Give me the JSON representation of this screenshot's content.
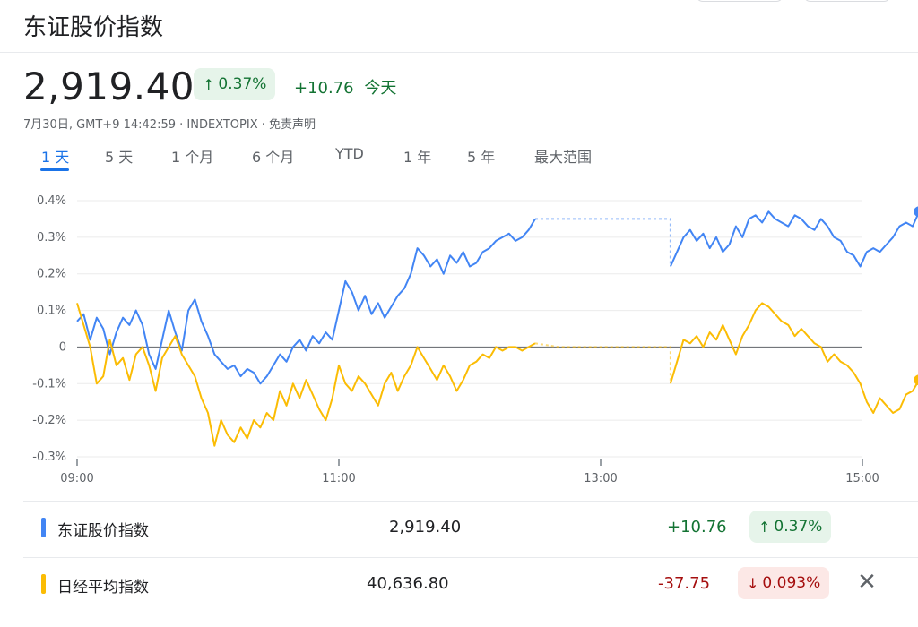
{
  "header": {
    "title": "东证股价指数"
  },
  "quote": {
    "price": "2,919.40",
    "change_pct": "0.37%",
    "change_abs": "+10.76",
    "period_label": "今天",
    "subline": "7月30日, GMT+9 14:42:59 · INDEXTOPIX · 免责声明"
  },
  "tabs": [
    "1 天",
    "5 天",
    "1 个月",
    "6 个月",
    "YTD",
    "1 年",
    "5 年",
    "最大范围"
  ],
  "colors": {
    "topix": "#4285f4",
    "nikkei": "#fbbc04",
    "up": "#137333",
    "down": "#a50e0e"
  },
  "chart_data": {
    "type": "line",
    "x_ticks": [
      "09:00",
      "11:00",
      "13:00",
      "15:00"
    ],
    "y_ticks": [
      "0.4%",
      "0.3%",
      "0.2%",
      "0.1%",
      "0",
      "-0.1%",
      "-0.2%",
      "-0.3%"
    ],
    "ylim": [
      -0.3,
      0.4
    ],
    "xlim_minutes": [
      540,
      900
    ],
    "series": [
      {
        "name": "东证股价指数",
        "color": "#4285f4",
        "morning": [
          [
            540,
            0.07
          ],
          [
            543,
            0.09
          ],
          [
            546,
            0.02
          ],
          [
            549,
            0.08
          ],
          [
            552,
            0.05
          ],
          [
            555,
            -0.02
          ],
          [
            558,
            0.04
          ],
          [
            561,
            0.08
          ],
          [
            564,
            0.06
          ],
          [
            567,
            0.1
          ],
          [
            570,
            0.06
          ],
          [
            573,
            -0.02
          ],
          [
            576,
            -0.06
          ],
          [
            579,
            0.02
          ],
          [
            582,
            0.1
          ],
          [
            585,
            0.04
          ],
          [
            588,
            -0.01
          ],
          [
            591,
            0.1
          ],
          [
            594,
            0.13
          ],
          [
            597,
            0.07
          ],
          [
            600,
            0.03
          ],
          [
            603,
            -0.02
          ],
          [
            606,
            -0.04
          ],
          [
            609,
            -0.06
          ],
          [
            612,
            -0.05
          ],
          [
            615,
            -0.08
          ],
          [
            618,
            -0.06
          ],
          [
            621,
            -0.07
          ],
          [
            624,
            -0.1
          ],
          [
            627,
            -0.08
          ],
          [
            630,
            -0.05
          ],
          [
            633,
            -0.02
          ],
          [
            636,
            -0.04
          ],
          [
            639,
            0.0
          ],
          [
            642,
            0.02
          ],
          [
            645,
            -0.01
          ],
          [
            648,
            0.03
          ],
          [
            651,
            0.01
          ],
          [
            654,
            0.04
          ],
          [
            657,
            0.02
          ],
          [
            660,
            0.1
          ],
          [
            663,
            0.18
          ],
          [
            666,
            0.15
          ],
          [
            669,
            0.1
          ],
          [
            672,
            0.14
          ],
          [
            675,
            0.09
          ],
          [
            678,
            0.12
          ],
          [
            681,
            0.08
          ],
          [
            684,
            0.11
          ],
          [
            687,
            0.14
          ],
          [
            690,
            0.16
          ],
          [
            693,
            0.2
          ],
          [
            696,
            0.27
          ],
          [
            699,
            0.25
          ],
          [
            702,
            0.22
          ],
          [
            705,
            0.24
          ],
          [
            708,
            0.2
          ],
          [
            711,
            0.25
          ],
          [
            714,
            0.23
          ],
          [
            717,
            0.26
          ],
          [
            720,
            0.22
          ],
          [
            723,
            0.23
          ],
          [
            726,
            0.26
          ],
          [
            729,
            0.27
          ],
          [
            732,
            0.29
          ],
          [
            735,
            0.3
          ],
          [
            738,
            0.31
          ],
          [
            741,
            0.29
          ],
          [
            744,
            0.3
          ],
          [
            747,
            0.32
          ],
          [
            750,
            0.35
          ]
        ],
        "break_line": [
          [
            750,
            0.35
          ],
          [
            761,
            0.35
          ],
          [
            772,
            0.35
          ],
          [
            783,
            0.35
          ],
          [
            794,
            0.35
          ],
          [
            805,
            0.35
          ],
          [
            812,
            0.35
          ],
          [
            812,
            0.22
          ]
        ],
        "afternoon": [
          [
            812,
            0.22
          ],
          [
            815,
            0.26
          ],
          [
            818,
            0.3
          ],
          [
            821,
            0.32
          ],
          [
            824,
            0.29
          ],
          [
            827,
            0.31
          ],
          [
            830,
            0.27
          ],
          [
            833,
            0.3
          ],
          [
            836,
            0.26
          ],
          [
            839,
            0.28
          ],
          [
            842,
            0.33
          ],
          [
            845,
            0.3
          ],
          [
            848,
            0.35
          ],
          [
            851,
            0.36
          ],
          [
            854,
            0.34
          ],
          [
            857,
            0.37
          ],
          [
            860,
            0.35
          ],
          [
            863,
            0.34
          ],
          [
            866,
            0.33
          ],
          [
            869,
            0.36
          ],
          [
            872,
            0.35
          ],
          [
            875,
            0.33
          ],
          [
            878,
            0.32
          ],
          [
            881,
            0.35
          ],
          [
            884,
            0.33
          ],
          [
            887,
            0.3
          ],
          [
            890,
            0.29
          ],
          [
            893,
            0.26
          ],
          [
            896,
            0.25
          ],
          [
            899,
            0.22
          ],
          [
            902,
            0.26
          ],
          [
            905,
            0.27
          ],
          [
            908,
            0.26
          ],
          [
            911,
            0.28
          ],
          [
            914,
            0.3
          ],
          [
            917,
            0.33
          ],
          [
            920,
            0.34
          ],
          [
            923,
            0.33
          ],
          [
            926,
            0.37
          ]
        ]
      },
      {
        "name": "日经平均指数",
        "color": "#fbbc04",
        "morning": [
          [
            540,
            0.12
          ],
          [
            543,
            0.06
          ],
          [
            546,
            0.0
          ],
          [
            549,
            -0.1
          ],
          [
            552,
            -0.08
          ],
          [
            555,
            0.02
          ],
          [
            558,
            -0.05
          ],
          [
            561,
            -0.03
          ],
          [
            564,
            -0.09
          ],
          [
            567,
            -0.02
          ],
          [
            570,
            0.0
          ],
          [
            573,
            -0.05
          ],
          [
            576,
            -0.12
          ],
          [
            579,
            -0.03
          ],
          [
            582,
            0.0
          ],
          [
            585,
            0.03
          ],
          [
            588,
            -0.02
          ],
          [
            591,
            -0.05
          ],
          [
            594,
            -0.08
          ],
          [
            597,
            -0.14
          ],
          [
            600,
            -0.18
          ],
          [
            603,
            -0.27
          ],
          [
            606,
            -0.2
          ],
          [
            609,
            -0.24
          ],
          [
            612,
            -0.26
          ],
          [
            615,
            -0.22
          ],
          [
            618,
            -0.25
          ],
          [
            621,
            -0.2
          ],
          [
            624,
            -0.22
          ],
          [
            627,
            -0.18
          ],
          [
            630,
            -0.2
          ],
          [
            633,
            -0.12
          ],
          [
            636,
            -0.16
          ],
          [
            639,
            -0.1
          ],
          [
            642,
            -0.14
          ],
          [
            645,
            -0.09
          ],
          [
            648,
            -0.13
          ],
          [
            651,
            -0.17
          ],
          [
            654,
            -0.2
          ],
          [
            657,
            -0.14
          ],
          [
            660,
            -0.05
          ],
          [
            663,
            -0.1
          ],
          [
            666,
            -0.12
          ],
          [
            669,
            -0.08
          ],
          [
            672,
            -0.1
          ],
          [
            675,
            -0.13
          ],
          [
            678,
            -0.16
          ],
          [
            681,
            -0.1
          ],
          [
            684,
            -0.07
          ],
          [
            687,
            -0.12
          ],
          [
            690,
            -0.08
          ],
          [
            693,
            -0.05
          ],
          [
            696,
            0.0
          ],
          [
            699,
            -0.03
          ],
          [
            702,
            -0.06
          ],
          [
            705,
            -0.09
          ],
          [
            708,
            -0.05
          ],
          [
            711,
            -0.08
          ],
          [
            714,
            -0.12
          ],
          [
            717,
            -0.09
          ],
          [
            720,
            -0.05
          ],
          [
            723,
            -0.04
          ],
          [
            726,
            -0.02
          ],
          [
            729,
            -0.03
          ],
          [
            732,
            0.0
          ],
          [
            735,
            -0.01
          ],
          [
            738,
            0.0
          ],
          [
            741,
            0.0
          ],
          [
            744,
            -0.01
          ],
          [
            747,
            0.0
          ],
          [
            750,
            0.01
          ]
        ],
        "break_line": [
          [
            750,
            0.01
          ],
          [
            761,
            0.0
          ],
          [
            772,
            0.0
          ],
          [
            783,
            0.0
          ],
          [
            794,
            0.0
          ],
          [
            805,
            0.0
          ],
          [
            812,
            0.0
          ],
          [
            812,
            -0.1
          ]
        ],
        "afternoon": [
          [
            812,
            -0.1
          ],
          [
            815,
            -0.04
          ],
          [
            818,
            0.02
          ],
          [
            821,
            0.01
          ],
          [
            824,
            0.03
          ],
          [
            827,
            0.0
          ],
          [
            830,
            0.04
          ],
          [
            833,
            0.02
          ],
          [
            836,
            0.06
          ],
          [
            839,
            0.02
          ],
          [
            842,
            -0.02
          ],
          [
            845,
            0.03
          ],
          [
            848,
            0.06
          ],
          [
            851,
            0.1
          ],
          [
            854,
            0.12
          ],
          [
            857,
            0.11
          ],
          [
            860,
            0.09
          ],
          [
            863,
            0.07
          ],
          [
            866,
            0.06
          ],
          [
            869,
            0.03
          ],
          [
            872,
            0.05
          ],
          [
            875,
            0.03
          ],
          [
            878,
            0.01
          ],
          [
            881,
            0.0
          ],
          [
            884,
            -0.04
          ],
          [
            887,
            -0.02
          ],
          [
            890,
            -0.04
          ],
          [
            893,
            -0.05
          ],
          [
            896,
            -0.07
          ],
          [
            899,
            -0.1
          ],
          [
            902,
            -0.15
          ],
          [
            905,
            -0.18
          ],
          [
            908,
            -0.14
          ],
          [
            911,
            -0.16
          ],
          [
            914,
            -0.18
          ],
          [
            917,
            -0.17
          ],
          [
            920,
            -0.13
          ],
          [
            923,
            -0.12
          ],
          [
            926,
            -0.09
          ]
        ]
      }
    ]
  },
  "rows": [
    {
      "name": "东证股价指数",
      "value": "2,919.40",
      "change": "+10.76",
      "pct": "0.37%",
      "dir": "up"
    },
    {
      "name": "日经平均指数",
      "value": "40,636.80",
      "change": "-37.75",
      "pct": "0.093%",
      "dir": "down"
    }
  ],
  "icons": {
    "up": "↑",
    "down": "↓",
    "close": "✕"
  }
}
